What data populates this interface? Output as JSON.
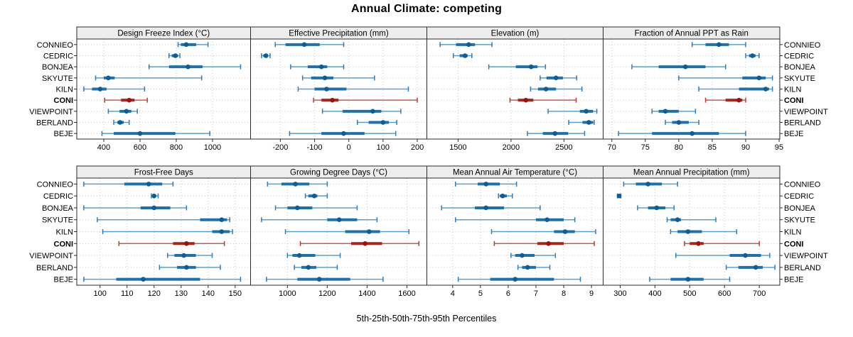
{
  "title": "Annual Climate: competing",
  "caption": "5th-25th-50th-75th-95th Percentiles",
  "colors": {
    "blue_whisker": "#5b9fd0",
    "blue_cap": "#2e7cb8",
    "blue_box": "#1d72ad",
    "blue_dot": "#0f5d94",
    "red_whisker": "#cc5a4a",
    "red_cap": "#bf3a2c",
    "red_box": "#ab241a",
    "red_dot": "#9c130d",
    "strip_bg": "#ededed",
    "panel_border": "#2b2b2b",
    "grid": "#c8c8c8",
    "text": "#000000"
  },
  "chart_data": {
    "type": "dotplot-intervals",
    "subtitle_note": "5th-25th-50th-75th-95th Percentiles",
    "categories": [
      "CONNIEO",
      "CEDRIC",
      "BONJEA",
      "SKYUTE",
      "KILN",
      "CONI",
      "VIEWPOINT",
      "BERLAND",
      "BEJE"
    ],
    "highlight": "CONI",
    "percentiles": [
      5,
      25,
      50,
      75,
      95
    ],
    "legend_position": "none",
    "grid": "dotted",
    "panels": [
      {
        "title": "Design Freeze Index (°C)",
        "ticks": [
          400,
          600,
          800,
          1000
        ],
        "xlim": [
          251,
          1210
        ],
        "values": [
          [
            810,
            825,
            855,
            910,
            975
          ],
          [
            760,
            775,
            795,
            810,
            820
          ],
          [
            650,
            760,
            865,
            945,
            1155
          ],
          [
            355,
            400,
            425,
            460,
            940
          ],
          [
            290,
            335,
            380,
            415,
            625
          ],
          [
            405,
            495,
            540,
            570,
            640
          ],
          [
            425,
            487,
            525,
            552,
            585
          ],
          [
            455,
            475,
            490,
            510,
            540
          ],
          [
            390,
            455,
            600,
            795,
            985
          ]
        ]
      },
      {
        "title": "Effective Precipitation (mm)",
        "ticks": [
          -200,
          -100,
          0,
          100,
          200
        ],
        "xlim": [
          -287,
          228
        ],
        "values": [
          [
            -215,
            -185,
            -130,
            -85,
            -15
          ],
          [
            -255,
            -250,
            -242,
            -236,
            -230
          ],
          [
            -170,
            -120,
            -80,
            -63,
            -15
          ],
          [
            -135,
            -110,
            -70,
            -45,
            75
          ],
          [
            -148,
            -100,
            -65,
            -7,
            174
          ],
          [
            -103,
            -80,
            -48,
            -30,
            200
          ],
          [
            -77,
            -18,
            70,
            95,
            152
          ],
          [
            25,
            58,
            100,
            117,
            140
          ],
          [
            -173,
            -80,
            -15,
            46,
            137
          ]
        ]
      },
      {
        "title": "Elevation (m)",
        "ticks": [
          1500,
          2000,
          2500
        ],
        "xlim": [
          1205,
          2870
        ],
        "values": [
          [
            1330,
            1480,
            1600,
            1660,
            1820
          ],
          [
            1455,
            1515,
            1565,
            1590,
            1630
          ],
          [
            1790,
            2045,
            2190,
            2250,
            2325
          ],
          [
            2275,
            2335,
            2425,
            2490,
            2620
          ],
          [
            2185,
            2255,
            2330,
            2425,
            2670
          ],
          [
            1990,
            2065,
            2140,
            2210,
            2615
          ],
          [
            2350,
            2650,
            2710,
            2775,
            2810
          ],
          [
            2545,
            2675,
            2735,
            2775,
            2785
          ],
          [
            2155,
            2300,
            2415,
            2540,
            2695
          ]
        ]
      },
      {
        "title": "Fraction of Annual PPT as Rain",
        "ticks": [
          70,
          75,
          80,
          85,
          90,
          95
        ],
        "xlim": [
          68.7,
          95.1
        ],
        "values": [
          [
            82,
            84,
            86,
            87.5,
            90
          ],
          [
            90,
            90.5,
            91,
            91.5,
            92
          ],
          [
            73,
            77,
            81,
            84,
            87
          ],
          [
            80,
            89.5,
            92,
            93,
            94
          ],
          [
            83,
            89,
            93,
            93.5,
            94
          ],
          [
            84,
            87,
            89,
            89.5,
            90
          ],
          [
            76,
            77,
            78,
            80,
            82.5
          ],
          [
            78,
            79,
            80,
            81.5,
            83
          ],
          [
            71,
            76,
            82,
            86,
            90
          ]
        ]
      },
      {
        "title": "Frost-Free Days",
        "ticks": [
          100,
          110,
          120,
          130,
          140,
          150
        ],
        "xlim": [
          91.4,
          155.7
        ],
        "values": [
          [
            94,
            109,
            118,
            123,
            127
          ],
          [
            119,
            119.5,
            120,
            120.5,
            121.5
          ],
          [
            94,
            115,
            120,
            126,
            132
          ],
          [
            99,
            137,
            145,
            147,
            148
          ],
          [
            101,
            141.5,
            145,
            148,
            149
          ],
          [
            107,
            127,
            132,
            135,
            146
          ],
          [
            125,
            127.5,
            131,
            135.5,
            141.5
          ],
          [
            122,
            128.5,
            132,
            135.5,
            144.5
          ],
          [
            94,
            106,
            116,
            137,
            152
          ]
        ]
      },
      {
        "title": "Growing Degree Days (°C)",
        "ticks": [
          1000,
          1200,
          1400,
          1600
        ],
        "xlim": [
          815,
          1700
        ],
        "values": [
          [
            900,
            970,
            1040,
            1110,
            1200
          ],
          [
            1090,
            1105,
            1135,
            1150,
            1200
          ],
          [
            940,
            1000,
            1050,
            1125,
            1350
          ],
          [
            870,
            1200,
            1260,
            1350,
            1450
          ],
          [
            990,
            1290,
            1410,
            1465,
            1610
          ],
          [
            1065,
            1320,
            1390,
            1475,
            1660
          ],
          [
            1000,
            1025,
            1060,
            1140,
            1265
          ],
          [
            1035,
            1070,
            1105,
            1145,
            1250
          ],
          [
            895,
            1050,
            1160,
            1315,
            1480
          ]
        ]
      },
      {
        "title": "Mean Annual Air Temperature (°C)",
        "ticks": [
          4,
          5,
          6,
          7,
          8,
          9
        ],
        "xlim": [
          3.07,
          9.42
        ],
        "values": [
          [
            4.1,
            4.9,
            5.2,
            5.7,
            6.3
          ],
          [
            5.65,
            5.7,
            5.8,
            5.95,
            6.15
          ],
          [
            3.6,
            4.8,
            5.2,
            5.85,
            7.15
          ],
          [
            4.1,
            7.0,
            7.4,
            8.0,
            8.4
          ],
          [
            5.4,
            7.65,
            8.05,
            8.4,
            9.15
          ],
          [
            5.5,
            7.05,
            7.45,
            8.0,
            9.1
          ],
          [
            6.1,
            6.25,
            6.5,
            6.95,
            7.7
          ],
          [
            6.35,
            6.5,
            6.7,
            7.0,
            7.5
          ],
          [
            4.2,
            5.35,
            6.25,
            7.65,
            8.6
          ]
        ]
      },
      {
        "title": "Mean Annual Precipitation (mm)",
        "ticks": [
          300,
          400,
          500,
          600,
          700
        ],
        "xlim": [
          251,
          759
        ],
        "values": [
          [
            310,
            345,
            380,
            420,
            465
          ],
          [
            292,
            295,
            297,
            300,
            302
          ],
          [
            350,
            380,
            405,
            430,
            455
          ],
          [
            435,
            445,
            465,
            475,
            575
          ],
          [
            445,
            465,
            495,
            535,
            635
          ],
          [
            485,
            500,
            525,
            540,
            700
          ],
          [
            460,
            615,
            660,
            705,
            730
          ],
          [
            605,
            640,
            690,
            710,
            745
          ],
          [
            385,
            445,
            495,
            540,
            615
          ]
        ]
      }
    ]
  }
}
